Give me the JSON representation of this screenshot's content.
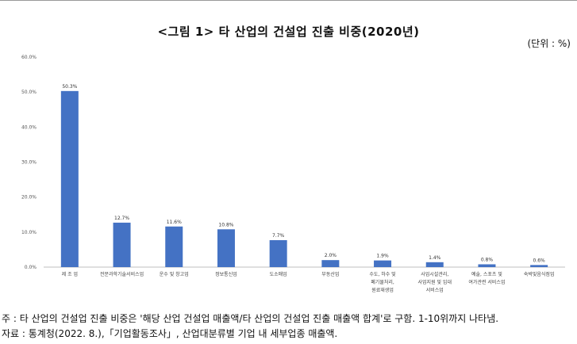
{
  "title": "<그림 1> 타 산업의 건설업 진출 비중(2020년)",
  "unit": "(단위 : %)",
  "note": "주 : 타 산업의 건설업 진출 비중은 '해당 산업 건설업 매출액/타 산업의 건설업 진출 매출액 합계'로 구함. 1-10위까지 나타냄.",
  "source": "자료 : 통계청(2022. 8.),「기업활동조사」, 산업대분류별 기업 내 세부업종 매출액.",
  "chart_data": {
    "type": "bar",
    "title": "<그림 1> 타 산업의 건설업 진출 비중(2020년)",
    "categories": [
      [
        "제 조 업"
      ],
      [
        "전문과학기술서비스업"
      ],
      [
        "운수 및 창고업"
      ],
      [
        "정보통신업"
      ],
      [
        "도소매업"
      ],
      [
        "부동산업"
      ],
      [
        "수도, 하수 및",
        "폐기물처리,",
        "원료재생업"
      ],
      [
        "사업시설관리,",
        "사업지원 및 임대",
        "서비스업"
      ],
      [
        "예술, 스포츠 및",
        "여가관련 서비스업"
      ],
      [
        "숙박및음식점업"
      ]
    ],
    "values": [
      50.3,
      12.7,
      11.6,
      10.8,
      7.7,
      2.0,
      1.9,
      1.4,
      0.8,
      0.6
    ],
    "value_labels": [
      "50.3%",
      "12.7%",
      "11.6%",
      "10.8%",
      "7.7%",
      "2.0%",
      "1.9%",
      "1.4%",
      "0.8%",
      "0.6%"
    ],
    "ylim": [
      0,
      60
    ],
    "yticks": [
      "0.0%",
      "10.0%",
      "20.0%",
      "30.0%",
      "40.0%",
      "50.0%",
      "60.0%"
    ],
    "grid": false,
    "bar_color": "#4472C4"
  }
}
